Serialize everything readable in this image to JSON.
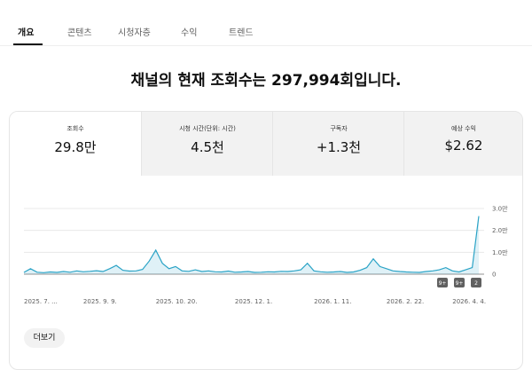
{
  "tabs": [
    "개요",
    "콘텐츠",
    "시청자층",
    "수익",
    "트렌드"
  ],
  "headline": "채널의 현재 조회수는 297,994회입니다.",
  "metrics": [
    {
      "label": "조회수",
      "value": "29.8만"
    },
    {
      "label": "시청 시간(단위: 시간)",
      "value": "4.5천"
    },
    {
      "label": "구독자",
      "value": "+1.3천"
    },
    {
      "label": "예상 수익",
      "value": "$2.62"
    }
  ],
  "chart_data": {
    "type": "line",
    "color": "#2aa3c6",
    "categories": [
      "2025. 7. ...",
      null,
      null,
      null,
      null,
      null,
      null,
      null,
      null,
      "2025. 9. 9.",
      null,
      null,
      null,
      null,
      null,
      null,
      null,
      null,
      null,
      null,
      "2025. 10. 20.",
      null,
      null,
      null,
      null,
      null,
      null,
      null,
      null,
      null,
      null,
      null,
      "2025. 12. 1.",
      null,
      null,
      null,
      null,
      null,
      null,
      null,
      null,
      null,
      null,
      null,
      "2026. 1. 11.",
      null,
      null,
      null,
      null,
      null,
      null,
      null,
      null,
      null,
      null,
      "2026. 2. 22.",
      null,
      null,
      null,
      null,
      null,
      null,
      null,
      null,
      null,
      "2026. 4. 4.",
      null,
      null,
      null,
      null
    ],
    "values": [
      800,
      2500,
      900,
      700,
      1000,
      800,
      1200,
      900,
      1500,
      1100,
      1300,
      1600,
      1200,
      2500,
      4000,
      1800,
      1400,
      1500,
      2200,
      6000,
      11000,
      5000,
      2500,
      3500,
      1500,
      1300,
      2000,
      1200,
      1500,
      1100,
      1000,
      1400,
      900,
      1000,
      1200,
      800,
      900,
      1100,
      1000,
      1300,
      1200,
      1500,
      2000,
      5000,
      1500,
      1100,
      900,
      1000,
      1200,
      800,
      1000,
      1800,
      3000,
      7000,
      3500,
      2500,
      1500,
      1200,
      1000,
      900,
      800,
      1200,
      1500,
      2000,
      3000,
      1500,
      1000,
      2000,
      3000,
      26500
    ],
    "ylim": [
      0,
      30000
    ],
    "yticks": [
      0,
      {
        "value": 10000,
        "label": "1.0만"
      },
      {
        "value": 20000,
        "label": "2.0만"
      },
      {
        "value": 30000,
        "label": "3.0만"
      }
    ],
    "grid": true,
    "badges": [
      "9+",
      "9+",
      "2"
    ]
  },
  "more_button": "더보기"
}
